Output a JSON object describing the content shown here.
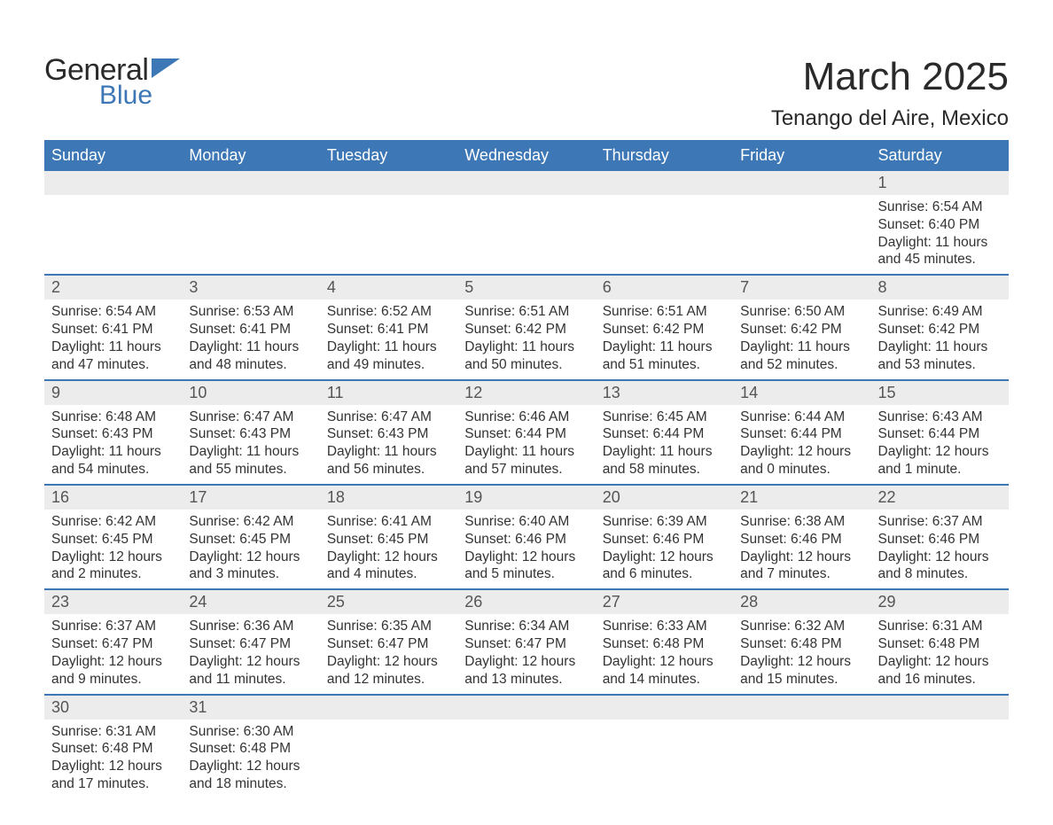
{
  "logo": {
    "word1": "General",
    "word2": "Blue",
    "flag_color": "#3d77b6"
  },
  "title": "March 2025",
  "location": "Tenango del Aire, Mexico",
  "header_bg": "#3d77b6",
  "daynum_bg": "#ececec",
  "divider_color": "#3d77b6",
  "text_color": "#333333",
  "columns": [
    "Sunday",
    "Monday",
    "Tuesday",
    "Wednesday",
    "Thursday",
    "Friday",
    "Saturday"
  ],
  "weeks": [
    [
      null,
      null,
      null,
      null,
      null,
      null,
      {
        "n": "1",
        "sunrise": "Sunrise: 6:54 AM",
        "sunset": "Sunset: 6:40 PM",
        "day1": "Daylight: 11 hours",
        "day2": "and 45 minutes."
      }
    ],
    [
      {
        "n": "2",
        "sunrise": "Sunrise: 6:54 AM",
        "sunset": "Sunset: 6:41 PM",
        "day1": "Daylight: 11 hours",
        "day2": "and 47 minutes."
      },
      {
        "n": "3",
        "sunrise": "Sunrise: 6:53 AM",
        "sunset": "Sunset: 6:41 PM",
        "day1": "Daylight: 11 hours",
        "day2": "and 48 minutes."
      },
      {
        "n": "4",
        "sunrise": "Sunrise: 6:52 AM",
        "sunset": "Sunset: 6:41 PM",
        "day1": "Daylight: 11 hours",
        "day2": "and 49 minutes."
      },
      {
        "n": "5",
        "sunrise": "Sunrise: 6:51 AM",
        "sunset": "Sunset: 6:42 PM",
        "day1": "Daylight: 11 hours",
        "day2": "and 50 minutes."
      },
      {
        "n": "6",
        "sunrise": "Sunrise: 6:51 AM",
        "sunset": "Sunset: 6:42 PM",
        "day1": "Daylight: 11 hours",
        "day2": "and 51 minutes."
      },
      {
        "n": "7",
        "sunrise": "Sunrise: 6:50 AM",
        "sunset": "Sunset: 6:42 PM",
        "day1": "Daylight: 11 hours",
        "day2": "and 52 minutes."
      },
      {
        "n": "8",
        "sunrise": "Sunrise: 6:49 AM",
        "sunset": "Sunset: 6:42 PM",
        "day1": "Daylight: 11 hours",
        "day2": "and 53 minutes."
      }
    ],
    [
      {
        "n": "9",
        "sunrise": "Sunrise: 6:48 AM",
        "sunset": "Sunset: 6:43 PM",
        "day1": "Daylight: 11 hours",
        "day2": "and 54 minutes."
      },
      {
        "n": "10",
        "sunrise": "Sunrise: 6:47 AM",
        "sunset": "Sunset: 6:43 PM",
        "day1": "Daylight: 11 hours",
        "day2": "and 55 minutes."
      },
      {
        "n": "11",
        "sunrise": "Sunrise: 6:47 AM",
        "sunset": "Sunset: 6:43 PM",
        "day1": "Daylight: 11 hours",
        "day2": "and 56 minutes."
      },
      {
        "n": "12",
        "sunrise": "Sunrise: 6:46 AM",
        "sunset": "Sunset: 6:44 PM",
        "day1": "Daylight: 11 hours",
        "day2": "and 57 minutes."
      },
      {
        "n": "13",
        "sunrise": "Sunrise: 6:45 AM",
        "sunset": "Sunset: 6:44 PM",
        "day1": "Daylight: 11 hours",
        "day2": "and 58 minutes."
      },
      {
        "n": "14",
        "sunrise": "Sunrise: 6:44 AM",
        "sunset": "Sunset: 6:44 PM",
        "day1": "Daylight: 12 hours",
        "day2": "and 0 minutes."
      },
      {
        "n": "15",
        "sunrise": "Sunrise: 6:43 AM",
        "sunset": "Sunset: 6:44 PM",
        "day1": "Daylight: 12 hours",
        "day2": "and 1 minute."
      }
    ],
    [
      {
        "n": "16",
        "sunrise": "Sunrise: 6:42 AM",
        "sunset": "Sunset: 6:45 PM",
        "day1": "Daylight: 12 hours",
        "day2": "and 2 minutes."
      },
      {
        "n": "17",
        "sunrise": "Sunrise: 6:42 AM",
        "sunset": "Sunset: 6:45 PM",
        "day1": "Daylight: 12 hours",
        "day2": "and 3 minutes."
      },
      {
        "n": "18",
        "sunrise": "Sunrise: 6:41 AM",
        "sunset": "Sunset: 6:45 PM",
        "day1": "Daylight: 12 hours",
        "day2": "and 4 minutes."
      },
      {
        "n": "19",
        "sunrise": "Sunrise: 6:40 AM",
        "sunset": "Sunset: 6:46 PM",
        "day1": "Daylight: 12 hours",
        "day2": "and 5 minutes."
      },
      {
        "n": "20",
        "sunrise": "Sunrise: 6:39 AM",
        "sunset": "Sunset: 6:46 PM",
        "day1": "Daylight: 12 hours",
        "day2": "and 6 minutes."
      },
      {
        "n": "21",
        "sunrise": "Sunrise: 6:38 AM",
        "sunset": "Sunset: 6:46 PM",
        "day1": "Daylight: 12 hours",
        "day2": "and 7 minutes."
      },
      {
        "n": "22",
        "sunrise": "Sunrise: 6:37 AM",
        "sunset": "Sunset: 6:46 PM",
        "day1": "Daylight: 12 hours",
        "day2": "and 8 minutes."
      }
    ],
    [
      {
        "n": "23",
        "sunrise": "Sunrise: 6:37 AM",
        "sunset": "Sunset: 6:47 PM",
        "day1": "Daylight: 12 hours",
        "day2": "and 9 minutes."
      },
      {
        "n": "24",
        "sunrise": "Sunrise: 6:36 AM",
        "sunset": "Sunset: 6:47 PM",
        "day1": "Daylight: 12 hours",
        "day2": "and 11 minutes."
      },
      {
        "n": "25",
        "sunrise": "Sunrise: 6:35 AM",
        "sunset": "Sunset: 6:47 PM",
        "day1": "Daylight: 12 hours",
        "day2": "and 12 minutes."
      },
      {
        "n": "26",
        "sunrise": "Sunrise: 6:34 AM",
        "sunset": "Sunset: 6:47 PM",
        "day1": "Daylight: 12 hours",
        "day2": "and 13 minutes."
      },
      {
        "n": "27",
        "sunrise": "Sunrise: 6:33 AM",
        "sunset": "Sunset: 6:48 PM",
        "day1": "Daylight: 12 hours",
        "day2": "and 14 minutes."
      },
      {
        "n": "28",
        "sunrise": "Sunrise: 6:32 AM",
        "sunset": "Sunset: 6:48 PM",
        "day1": "Daylight: 12 hours",
        "day2": "and 15 minutes."
      },
      {
        "n": "29",
        "sunrise": "Sunrise: 6:31 AM",
        "sunset": "Sunset: 6:48 PM",
        "day1": "Daylight: 12 hours",
        "day2": "and 16 minutes."
      }
    ],
    [
      {
        "n": "30",
        "sunrise": "Sunrise: 6:31 AM",
        "sunset": "Sunset: 6:48 PM",
        "day1": "Daylight: 12 hours",
        "day2": "and 17 minutes."
      },
      {
        "n": "31",
        "sunrise": "Sunrise: 6:30 AM",
        "sunset": "Sunset: 6:48 PM",
        "day1": "Daylight: 12 hours",
        "day2": "and 18 minutes."
      },
      null,
      null,
      null,
      null,
      null
    ]
  ]
}
